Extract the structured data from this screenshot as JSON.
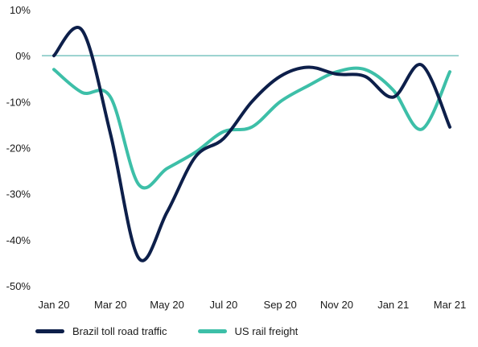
{
  "chart_data": {
    "type": "line",
    "title": "",
    "xlabel": "",
    "ylabel": "",
    "x_tick_labels": [
      "Jan 20",
      "Mar 20",
      "May 20",
      "Jul 20",
      "Sep 20",
      "Nov 20",
      "Jan 21",
      "Mar 21"
    ],
    "y_ticks": [
      10,
      0,
      -10,
      -20,
      -30,
      -40,
      -50
    ],
    "y_tick_labels": [
      "10%",
      "0%",
      "-10%",
      "-20%",
      "-30%",
      "-40%",
      "-50%"
    ],
    "ylim": [
      -50,
      10
    ],
    "xlim": [
      "2020-01",
      "2021-03"
    ],
    "grid": false,
    "zero_line": true,
    "legend_position": "bottom-left",
    "series": [
      {
        "name": "Brazil toll road traffic",
        "color": "#0d1f4a",
        "x": [
          "2020-01",
          "2020-02",
          "2020-03",
          "2020-04",
          "2020-05",
          "2020-06",
          "2020-07",
          "2020-08",
          "2020-09",
          "2020-10",
          "2020-11",
          "2020-12",
          "2021-01",
          "2021-02",
          "2021-03"
        ],
        "values": [
          0,
          5.5,
          -17,
          -44,
          -34,
          -22,
          -18,
          -10,
          -4.5,
          -2.5,
          -4,
          -4.5,
          -9,
          -2,
          -15.5
        ]
      },
      {
        "name": "US rail freight",
        "color": "#3dbfa8",
        "x": [
          "2020-01",
          "2020-02",
          "2020-03",
          "2020-04",
          "2020-05",
          "2020-06",
          "2020-07",
          "2020-08",
          "2020-09",
          "2020-10",
          "2020-11",
          "2020-12",
          "2021-01",
          "2021-02",
          "2021-03"
        ],
        "values": [
          -3,
          -8,
          -9,
          -28,
          -24.5,
          -21,
          -16.5,
          -15.5,
          -10,
          -6.5,
          -3.5,
          -3,
          -7.5,
          -16,
          -3.5
        ]
      }
    ]
  }
}
